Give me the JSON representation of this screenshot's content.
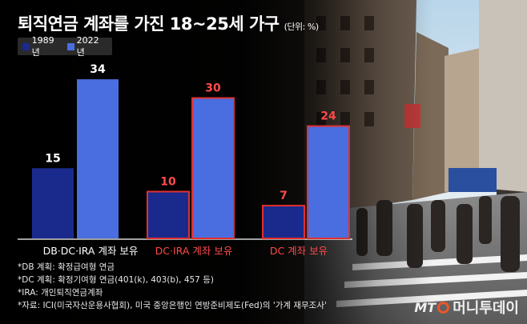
{
  "title": "퇴직연금 계좌를 가진 18~25세 가구",
  "unit": "(단위: %)",
  "colors": {
    "series_1989": "#1a2a8c",
    "series_2022": "#4a6ee0",
    "highlight_border": "#e03030",
    "highlight_text": "#ff4a4a"
  },
  "chart_data": {
    "type": "bar",
    "categories": [
      "DB·DC·IRA 계좌 보유",
      "DC·IRA 계좌 보유",
      "DC 계좌 보유"
    ],
    "series": [
      {
        "name": "1989년",
        "values": [
          15,
          10,
          7
        ]
      },
      {
        "name": "2022년",
        "values": [
          34,
          30,
          24
        ]
      }
    ],
    "highlighted_categories": [
      1,
      2
    ],
    "ylim": [
      0,
      40
    ],
    "legend_position": "top-left",
    "grid": false
  },
  "notes": [
    "*DB 계획: 확정급여형 연금",
    "*DC 계획: 확정기여형 연금(401(k), 403(b), 457 등)",
    "*IRA: 개인퇴직연금계좌",
    "*자료: ICI(미국자산운용사협회), 미국 중앙은행인 연방준비제도(Fed)의 '가계 재무조사'"
  ],
  "logo": {
    "mt": "MT",
    "name": "머니투데이"
  }
}
